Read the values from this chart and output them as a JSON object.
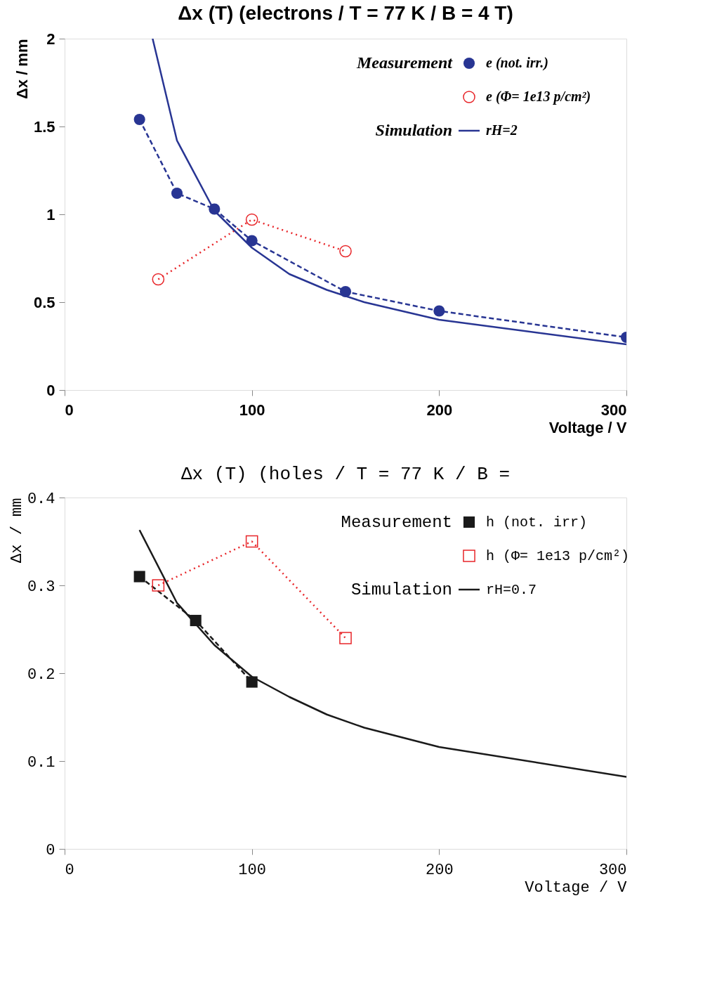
{
  "chart_data": [
    {
      "type": "line",
      "title": "Δx (T)  (electrons / T = 77 K  /  B = 4 T)",
      "xlabel": "Voltage / V",
      "ylabel": "Δx / mm",
      "xlim": [
        0,
        300
      ],
      "ylim": [
        0,
        2
      ],
      "xticks": [
        0,
        100,
        200,
        300
      ],
      "yticks": [
        0,
        0.5,
        1,
        1.5,
        2
      ],
      "grid": false,
      "legend": "top right",
      "annotations": [
        "Measurement",
        "Simulation"
      ],
      "series": [
        {
          "name": "e (not. irr.)",
          "color": "#283593",
          "marker": "circle",
          "line_style": "dashed",
          "x": [
            40,
            60,
            80,
            100,
            150,
            200,
            300
          ],
          "values": [
            1.54,
            1.12,
            1.03,
            0.85,
            0.56,
            0.45,
            0.3
          ]
        },
        {
          "name": "e (Φ= 1e13 p/cm²)",
          "color": "#e8262a",
          "marker": "circle",
          "line_style": "dotted",
          "x": [
            50,
            100,
            150
          ],
          "values": [
            0.63,
            0.97,
            0.79
          ]
        },
        {
          "name": "rH=2",
          "color": "#283593",
          "marker": "none",
          "line_style": "solid",
          "x": [
            47,
            60,
            80,
            100,
            120,
            140,
            160,
            200,
            300
          ],
          "values": [
            2.0,
            1.42,
            1.02,
            0.81,
            0.66,
            0.57,
            0.5,
            0.4,
            0.26
          ]
        }
      ]
    },
    {
      "type": "line",
      "title": "Δx (T)  (holes / T = 77 K  /  B =",
      "xlabel": "Voltage / V",
      "ylabel": "Δx / mm",
      "xlim": [
        0,
        300
      ],
      "ylim": [
        0,
        0.4
      ],
      "xticks": [
        0,
        100,
        200,
        300
      ],
      "yticks": [
        0,
        0.1,
        0.2,
        0.3,
        0.4
      ],
      "grid": false,
      "legend": "top right",
      "annotations": [
        "Measurement",
        "Simulation"
      ],
      "series": [
        {
          "name": "h (not. irr)",
          "color": "#1a1a1a",
          "marker": "square",
          "line_style": "dashed",
          "x": [
            40,
            70,
            100
          ],
          "values": [
            0.31,
            0.26,
            0.19
          ]
        },
        {
          "name": "h (Φ= 1e13 p/cm²)",
          "color": "#e8262a",
          "marker": "square",
          "line_style": "dotted",
          "x": [
            50,
            100,
            150
          ],
          "values": [
            0.3,
            0.35,
            0.24
          ]
        },
        {
          "name": "rH=0.7",
          "color": "#1a1a1a",
          "marker": "none",
          "line_style": "solid",
          "x": [
            40,
            60,
            80,
            100,
            120,
            140,
            160,
            200,
            300
          ],
          "values": [
            0.363,
            0.28,
            0.232,
            0.196,
            0.173,
            0.153,
            0.138,
            0.116,
            0.082
          ]
        }
      ]
    }
  ]
}
